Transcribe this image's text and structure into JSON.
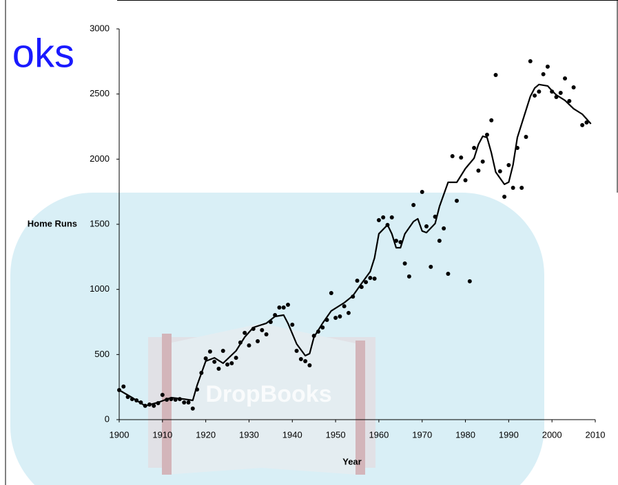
{
  "watermark_text": "oks",
  "watermark_inner_text": "DropBooks",
  "chart_data": {
    "type": "scatter",
    "xlabel": "Year",
    "ylabel": "Home Runs",
    "xlim": [
      1900,
      2010
    ],
    "xticks": [
      1900,
      1910,
      1920,
      1930,
      1940,
      1950,
      1960,
      1970,
      1980,
      1990,
      2000,
      2010
    ],
    "ylim": [
      0,
      3000
    ],
    "yticks": [
      0,
      500,
      1000,
      1500,
      2000,
      2500,
      3000
    ],
    "series": [
      {
        "mode": "markers",
        "color": "#000000",
        "x": [
          1900,
          1901,
          1902,
          1903,
          1904,
          1905,
          1906,
          1907,
          1908,
          1909,
          1910,
          1911,
          1912,
          1913,
          1914,
          1915,
          1916,
          1917,
          1918,
          1919,
          1920,
          1921,
          1922,
          1923,
          1924,
          1925,
          1926,
          1927,
          1928,
          1929,
          1930,
          1931,
          1932,
          1933,
          1934,
          1935,
          1936,
          1937,
          1938,
          1939,
          1940,
          1941,
          1942,
          1943,
          1944,
          1945,
          1946,
          1947,
          1948,
          1949,
          1950,
          1951,
          1952,
          1953,
          1954,
          1955,
          1956,
          1957,
          1958,
          1959,
          1960,
          1961,
          1962,
          1963,
          1964,
          1965,
          1966,
          1967,
          1968,
          1970,
          1971,
          1972,
          1973,
          1974,
          1975,
          1976,
          1977,
          1978,
          1979,
          1980,
          1981,
          1982,
          1983,
          1984,
          1985,
          1986,
          1987,
          1988,
          1989,
          1990,
          1991,
          1992,
          1993,
          1994,
          1995,
          1996,
          1997,
          1998,
          1999,
          2000,
          2001,
          2002,
          2003,
          2004,
          2005,
          2007,
          2008
        ],
        "values": [
          227,
          254,
          174,
          158,
          148,
          132,
          106,
          116,
          106,
          127,
          190,
          153,
          158,
          153,
          158,
          132,
          132,
          85,
          232,
          359,
          470,
          523,
          444,
          391,
          528,
          423,
          433,
          475,
          592,
          666,
          570,
          697,
          602,
          687,
          655,
          750,
          803,
          861,
          861,
          882,
          729,
          528,
          465,
          449,
          417,
          644,
          676,
          708,
          766,
          972,
          782,
          792,
          871,
          819,
          945,
          1067,
          1019,
          1056,
          1088,
          1083,
          1532,
          1553,
          1495,
          1553,
          1373,
          1363,
          1199,
          1099,
          1648,
          1748,
          1484,
          1173,
          1558,
          1373,
          1468,
          1120,
          2023,
          1680,
          2012,
          1838,
          1062,
          2086,
          1912,
          1981,
          2187,
          2298,
          2646,
          1907,
          1711,
          1954,
          1780,
          2086,
          1780,
          2171,
          2752,
          2488,
          2519,
          2652,
          2710,
          2519,
          2477,
          2509,
          2620,
          2446,
          2551,
          2261,
          2282
        ]
      },
      {
        "mode": "lines",
        "color": "#000000",
        "x": [
          1900,
          1903,
          1906,
          1909,
          1912,
          1915,
          1917,
          1918,
          1920,
          1922,
          1924,
          1927,
          1929,
          1931,
          1934,
          1936,
          1938,
          1939,
          1941,
          1943,
          1944,
          1945,
          1947,
          1949,
          1952,
          1954,
          1956,
          1958,
          1959,
          1960,
          1962,
          1963,
          1964,
          1965,
          1966,
          1968,
          1969,
          1970,
          1971,
          1973,
          1974,
          1976,
          1978,
          1979,
          1980,
          1982,
          1983,
          1984,
          1985,
          1986,
          1987,
          1989,
          1990,
          1991,
          1992,
          1994,
          1995,
          1996,
          1997,
          1999,
          2000,
          2001,
          2003,
          2005,
          2007,
          2009
        ],
        "values": [
          227,
          169,
          106,
          132,
          169,
          158,
          148,
          264,
          449,
          475,
          433,
          528,
          634,
          708,
          740,
          792,
          803,
          739,
          581,
          491,
          507,
          634,
          740,
          835,
          898,
          951,
          1046,
          1136,
          1241,
          1427,
          1495,
          1426,
          1320,
          1320,
          1426,
          1521,
          1542,
          1448,
          1436,
          1506,
          1637,
          1822,
          1822,
          1875,
          1928,
          2007,
          2113,
          2176,
          2166,
          2049,
          1901,
          1807,
          1823,
          1955,
          2166,
          2377,
          2482,
          2546,
          2573,
          2562,
          2525,
          2493,
          2451,
          2387,
          2345,
          2271
        ]
      }
    ]
  }
}
